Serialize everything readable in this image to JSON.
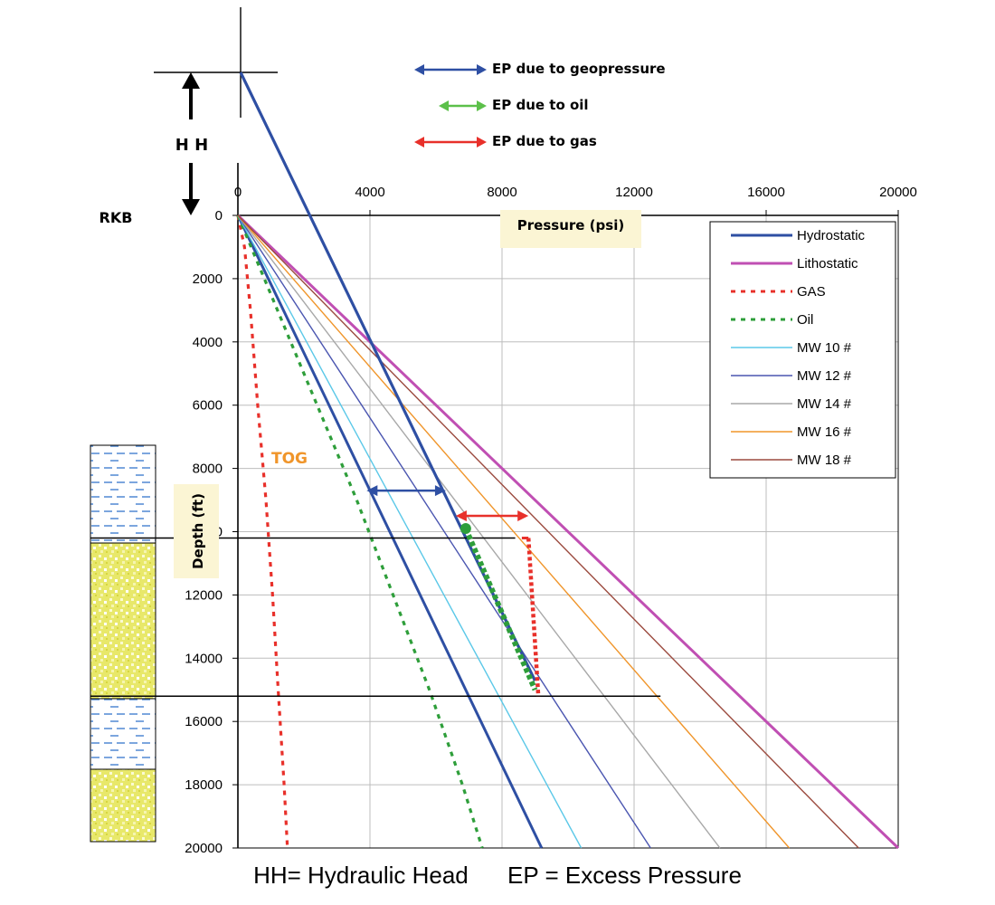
{
  "chart_data": {
    "type": "line",
    "xlabel": "Pressure (psi)",
    "ylabel": "Depth (ft)",
    "x_ticks": [
      0,
      4000,
      8000,
      12000,
      16000,
      20000
    ],
    "y_ticks": [
      0,
      2000,
      4000,
      6000,
      8000,
      10000,
      12000,
      14000,
      16000,
      18000,
      20000
    ],
    "xlim": [
      0,
      20000
    ],
    "ylim": [
      0,
      20000
    ],
    "grid": true,
    "legend_position": "top-right",
    "series": [
      {
        "name": "Hydrostatic",
        "color": "#2e4fa3",
        "style": "solid",
        "points": [
          [
            0,
            0
          ],
          [
            9200,
            20000
          ]
        ]
      },
      {
        "name": "Lithostatic",
        "color": "#c04fb3",
        "style": "solid",
        "points": [
          [
            0,
            0
          ],
          [
            20000,
            20000
          ]
        ]
      },
      {
        "name": "GAS",
        "color": "#e8302a",
        "style": "dotted",
        "points": [
          [
            0,
            0
          ],
          [
            200,
            1000
          ],
          [
            380,
            3000
          ],
          [
            600,
            6000
          ],
          [
            850,
            9000
          ],
          [
            1050,
            12000
          ],
          [
            1220,
            15000
          ],
          [
            1400,
            18000
          ],
          [
            1500,
            20000
          ]
        ]
      },
      {
        "name": "Oil",
        "color": "#2e9e3a",
        "style": "dotted",
        "points": [
          [
            0,
            0
          ],
          [
            800,
            2000
          ],
          [
            2000,
            5000
          ],
          [
            3600,
            9000
          ],
          [
            4700,
            12000
          ],
          [
            5800,
            15000
          ],
          [
            6800,
            18000
          ],
          [
            7400,
            20000
          ]
        ]
      },
      {
        "name": "MW 10 #",
        "color": "#5bc8e8",
        "style": "solid",
        "points": [
          [
            0,
            0
          ],
          [
            10400,
            20000
          ]
        ]
      },
      {
        "name": "MW 12 #",
        "color": "#4a55b0",
        "style": "solid",
        "points": [
          [
            0,
            0
          ],
          [
            12500,
            20000
          ]
        ]
      },
      {
        "name": "MW 14 #",
        "color": "#a8a8a8",
        "style": "solid",
        "points": [
          [
            0,
            0
          ],
          [
            14600,
            20000
          ]
        ]
      },
      {
        "name": "MW 16 #",
        "color": "#f0952a",
        "style": "solid",
        "points": [
          [
            0,
            0
          ],
          [
            16700,
            20000
          ]
        ]
      },
      {
        "name": "MW 18 #",
        "color": "#9b4a3e",
        "style": "solid",
        "points": [
          [
            0,
            0
          ],
          [
            18800,
            20000
          ]
        ]
      }
    ],
    "hydraulic_head_line": {
      "color": "#2e4fa3",
      "points": [
        [
          0,
          -4500
        ],
        [
          9000,
          15000
        ]
      ]
    },
    "overlays": {
      "gas_column": {
        "color": "#e8302a",
        "points": [
          [
            8800,
            10200
          ],
          [
            9100,
            15200
          ]
        ]
      },
      "oil_column": {
        "color": "#2e9e3a",
        "points": [
          [
            6900,
            9900
          ],
          [
            9000,
            15000
          ]
        ]
      },
      "ep_geopressure": {
        "color": "#2e4fa3",
        "from": [
          3900,
          8700
        ],
        "to": [
          6300,
          8700
        ]
      },
      "ep_gas": {
        "color": "#e8302a",
        "from": [
          6600,
          9500
        ],
        "to": [
          8800,
          9500
        ]
      },
      "contacts_depths": [
        10200,
        15200
      ]
    },
    "annotations": {
      "hh_label": "H H",
      "rkb_label": "RKB",
      "tog_label": "TOG"
    },
    "key": [
      {
        "label": "EP due to geopressure",
        "color": "#2e4fa3"
      },
      {
        "label": "EP due to oil",
        "color": "#5cc04a"
      },
      {
        "label": "EP due to gas",
        "color": "#e8302a"
      }
    ]
  },
  "caption": {
    "hh": "HH= Hydraulic Head",
    "ep": "EP = Excess Pressure"
  }
}
